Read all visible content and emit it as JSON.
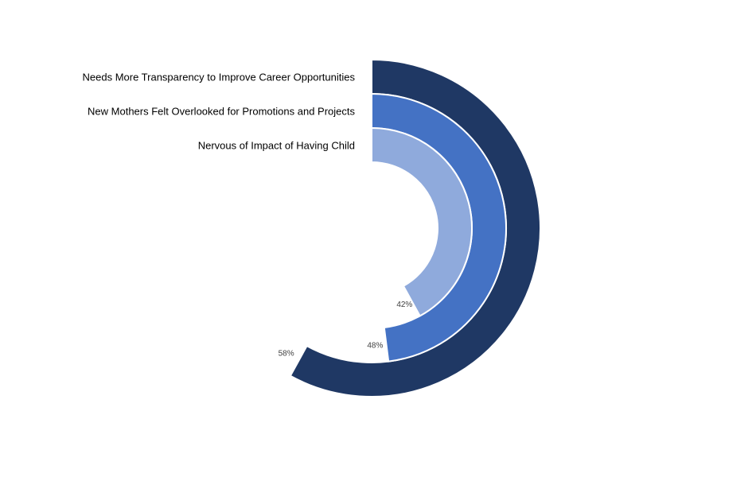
{
  "chart_data": {
    "type": "radial_bar",
    "title": "",
    "series": [
      {
        "name": "Needs More Transparency to Improve Career Opportunities",
        "value": 58,
        "value_label": "58%",
        "color": "#1F3864"
      },
      {
        "name": "New Mothers Felt Overlooked for Promotions and Projects",
        "value": 48,
        "value_label": "48%",
        "color": "#4472C4"
      },
      {
        "name": "Nervous of Impact of Having Child",
        "value": 42,
        "value_label": "42%",
        "color": "#8FAADC"
      }
    ],
    "max_value": 100,
    "direction": "clockwise from top"
  }
}
